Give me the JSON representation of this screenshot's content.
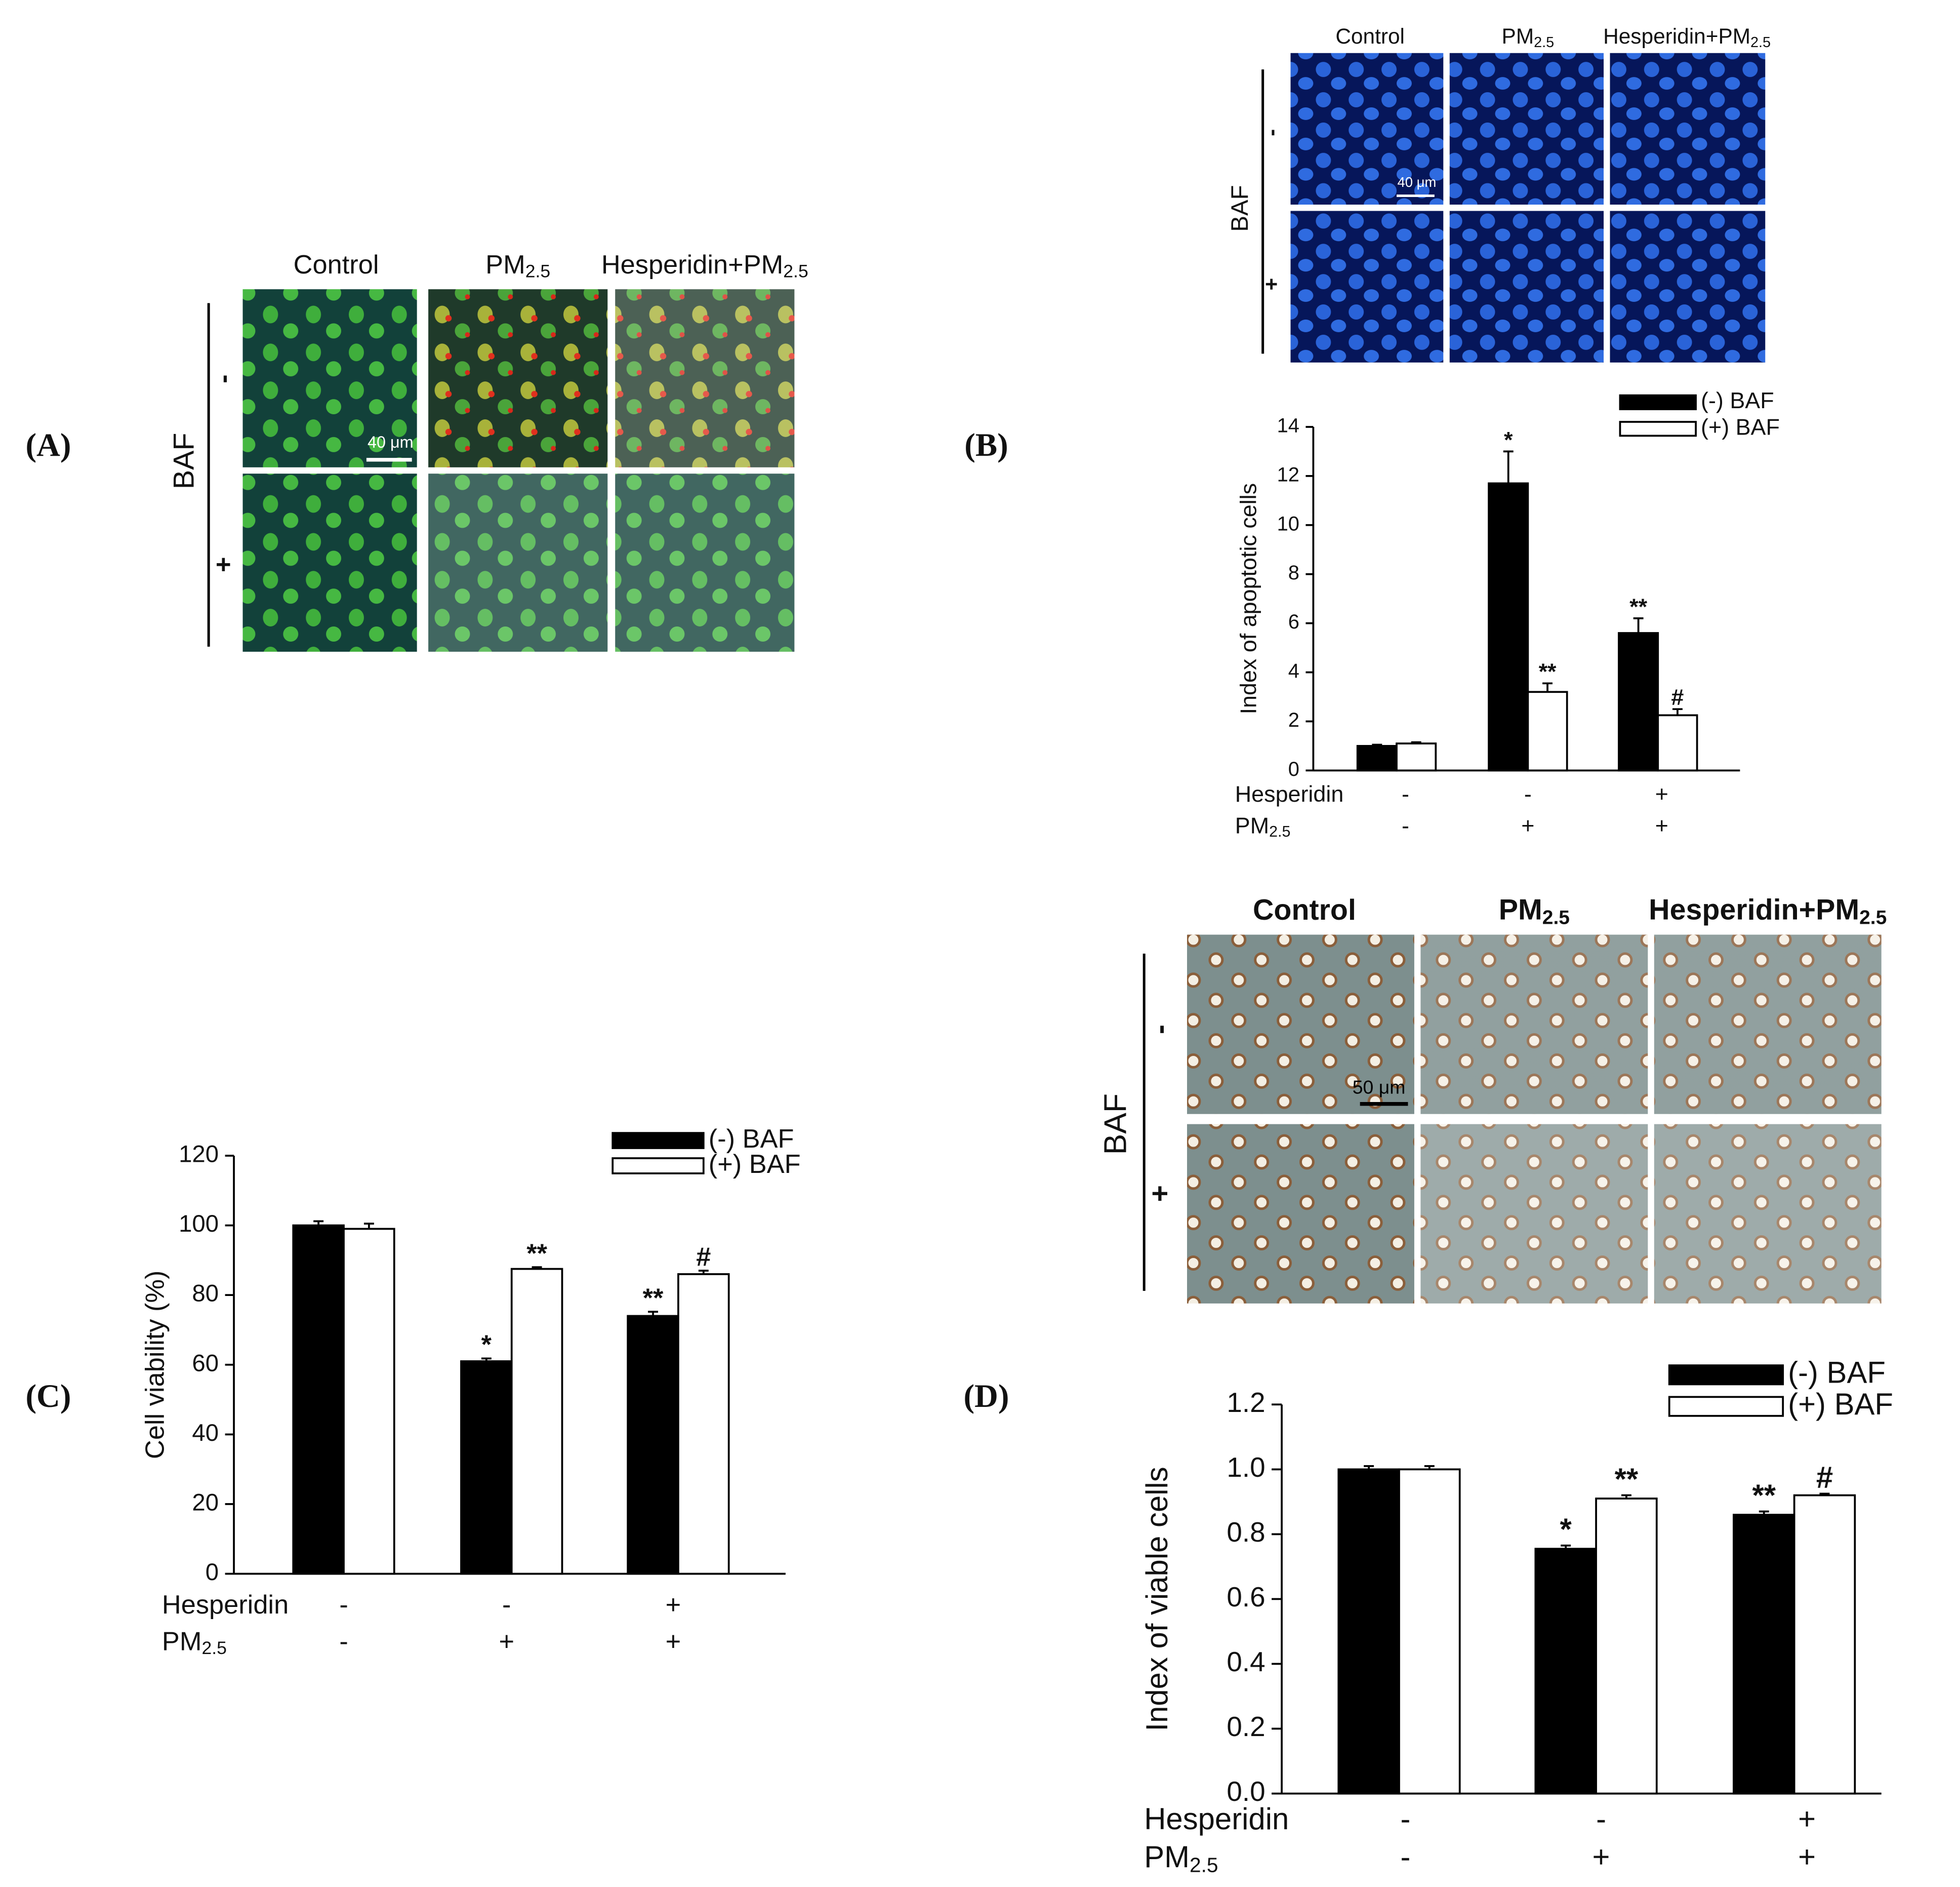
{
  "panel_labels": [
    "(A)",
    "(B)",
    "(C)",
    "(D)"
  ],
  "micrographs": [
    {
      "columns": [
        "Control",
        {
          "text": "PM",
          "sub": "2.5"
        },
        {
          "text": "Hesperidin+PM",
          "sub": "2.5"
        }
      ],
      "row_title": "BAF",
      "rows": [
        "-",
        "+"
      ],
      "scale_bar": "40 μm"
    },
    {
      "columns": [
        "Control",
        {
          "text": "PM",
          "sub": "2.5"
        },
        {
          "text": "Hesperidin+PM",
          "sub": "2.5"
        }
      ],
      "row_title": "BAF",
      "rows": [
        "-",
        "+"
      ],
      "scale_bar": "40 μm"
    },
    {
      "columns": [
        "Control",
        {
          "text": "PM",
          "sub": "2.5"
        },
        {
          "text": "Hesperidin+PM",
          "sub": "2.5"
        }
      ],
      "row_title": "BAF",
      "rows": [
        "-",
        "+"
      ],
      "scale_bar": "50 μm"
    }
  ],
  "chart_data": [
    {
      "type": "bar",
      "ylabel": "Index of apoptotic cells",
      "ylim": [
        0,
        14
      ],
      "yticks": [
        0,
        2,
        4,
        6,
        8,
        10,
        12,
        14
      ],
      "conditions": [
        {
          "label": "Hesperidin",
          "values": [
            "-",
            "-",
            "+"
          ]
        },
        {
          "label": {
            "text": "PM",
            "sub": "2.5"
          },
          "values": [
            "-",
            "+",
            "+"
          ]
        }
      ],
      "series": [
        {
          "name": "(-) BAF",
          "color": "#000000",
          "values": [
            1.0,
            11.7,
            5.6
          ],
          "errors": [
            0.05,
            1.3,
            0.6
          ],
          "annotations": [
            null,
            "*",
            "**"
          ]
        },
        {
          "name": "(+) BAF",
          "color": "#ffffff",
          "values": [
            1.1,
            3.2,
            2.25
          ],
          "errors": [
            0.05,
            0.35,
            0.25
          ],
          "annotations": [
            null,
            "**",
            "#"
          ]
        }
      ]
    },
    {
      "type": "bar",
      "ylabel": "Cell viability (%)",
      "ylim": [
        0,
        120
      ],
      "yticks": [
        0,
        20,
        40,
        60,
        80,
        100,
        120
      ],
      "conditions": [
        {
          "label": "Hesperidin",
          "values": [
            "-",
            "-",
            "+"
          ]
        },
        {
          "label": {
            "text": "PM",
            "sub": "2.5"
          },
          "values": [
            "-",
            "+",
            "+"
          ]
        }
      ],
      "series": [
        {
          "name": "(-) BAF",
          "color": "#000000",
          "values": [
            100,
            61,
            74
          ],
          "errors": [
            1.2,
            0.8,
            1.2
          ],
          "annotations": [
            null,
            "*",
            "**"
          ]
        },
        {
          "name": "(+) BAF",
          "color": "#ffffff",
          "values": [
            99,
            87.5,
            86
          ],
          "errors": [
            1.5,
            0.5,
            1
          ],
          "annotations": [
            null,
            "**",
            "#"
          ]
        }
      ]
    },
    {
      "type": "bar",
      "ylabel": "Index of viable cells",
      "ylim": [
        0,
        1.2
      ],
      "yticks": [
        {
          "value": 0,
          "label": "0.0"
        },
        0.2,
        0.4,
        0.6,
        0.8,
        {
          "value": 1,
          "label": "1.0"
        },
        1.2
      ],
      "conditions": [
        {
          "label": "Hesperidin",
          "values": [
            "-",
            "-",
            "+"
          ]
        },
        {
          "label": {
            "text": "PM",
            "sub": "2.5"
          },
          "values": [
            "-",
            "+",
            "+"
          ]
        }
      ],
      "series": [
        {
          "name": "(-) BAF",
          "color": "#000000",
          "values": [
            1.0,
            0.755,
            0.86
          ],
          "errors": [
            0.01,
            0.01,
            0.01
          ],
          "annotations": [
            null,
            "*",
            "**"
          ]
        },
        {
          "name": "(+) BAF",
          "color": "#ffffff",
          "values": [
            1.0,
            0.91,
            0.92
          ],
          "errors": [
            0.01,
            0.01,
            0.005
          ],
          "annotations": [
            null,
            "**",
            "#"
          ]
        }
      ]
    }
  ]
}
